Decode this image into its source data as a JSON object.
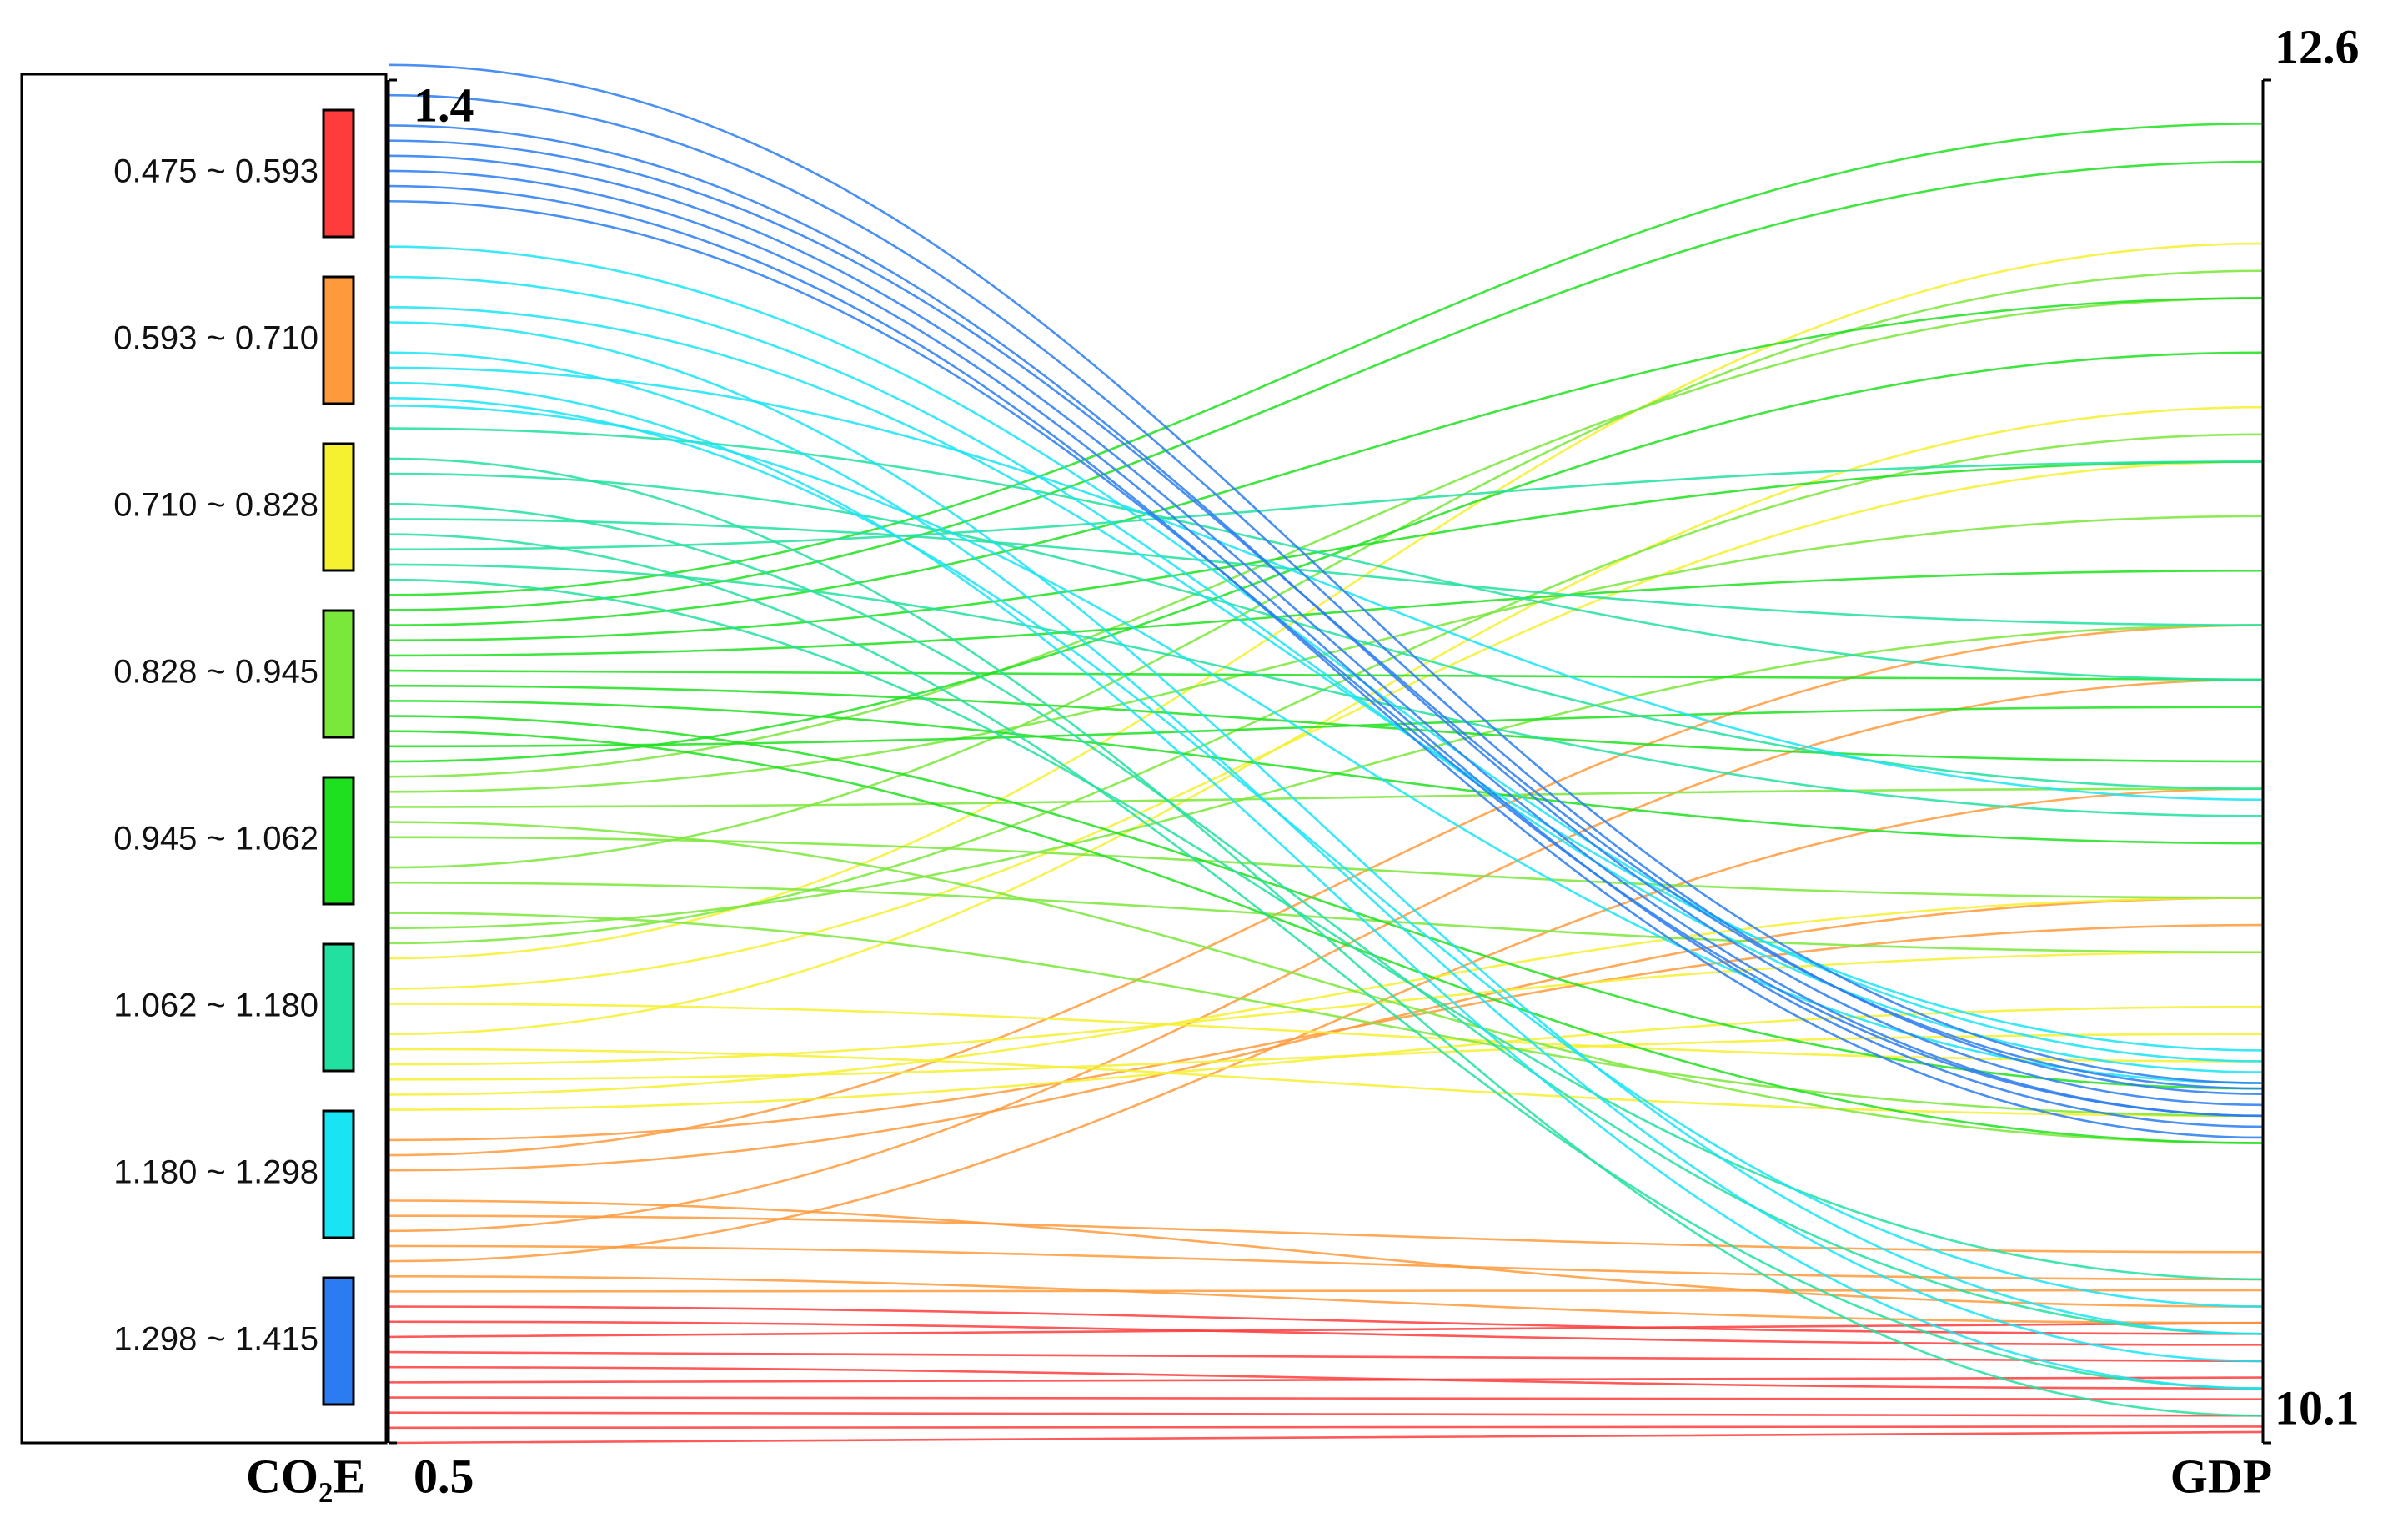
{
  "chart_data": {
    "type": "parallel",
    "axes": [
      {
        "label": "CO₂E",
        "lim": [
          0.5,
          1.4
        ],
        "ticks": [
          0.5,
          1.4
        ]
      },
      {
        "label": "GDP",
        "lim": [
          10.1,
          12.6
        ],
        "ticks": [
          10.1,
          12.6
        ]
      }
    ],
    "series": [
      {
        "name": "0.475 ~ 0.593",
        "color": "#ff3c3c",
        "co2e": [
          0.59,
          0.58,
          0.57,
          0.56,
          0.55,
          0.54,
          0.53,
          0.52,
          0.51,
          0.5
        ],
        "gdp": [
          10.3,
          10.28,
          10.32,
          10.25,
          10.2,
          10.22,
          10.18,
          10.15,
          10.13,
          10.12
        ]
      },
      {
        "name": "0.593 ~ 0.710",
        "color": "#ff9a3c",
        "co2e": [
          0.7,
          0.69,
          0.68,
          0.66,
          0.65,
          0.64,
          0.63,
          0.62,
          0.61,
          0.6
        ],
        "gdp": [
          11.05,
          11.6,
          11.1,
          10.35,
          10.45,
          11.5,
          10.4,
          11.3,
          10.32,
          10.38
        ]
      },
      {
        "name": "0.710 ~ 0.828",
        "color": "#f5f030",
        "co2e": [
          0.82,
          0.8,
          0.79,
          0.77,
          0.76,
          0.75,
          0.74,
          0.73,
          0.72
        ],
        "gdp": [
          12.3,
          11.9,
          10.8,
          12.0,
          10.7,
          11.0,
          10.85,
          11.1,
          10.9
        ]
      },
      {
        "name": "0.828 ~ 0.945",
        "color": "#7ae83a",
        "co2e": [
          0.94,
          0.93,
          0.92,
          0.91,
          0.9,
          0.88,
          0.87,
          0.85,
          0.84,
          0.83
        ],
        "gdp": [
          12.2,
          11.8,
          11.3,
          10.65,
          11.1,
          12.25,
          11.0,
          10.7,
          11.6,
          11.95
        ]
      },
      {
        "name": "0.945 ~ 1.062",
        "color": "#1ee01e",
        "co2e": [
          1.06,
          1.05,
          1.04,
          1.03,
          1.02,
          1.01,
          1.0,
          0.99,
          0.98,
          0.97,
          0.96,
          0.95
        ],
        "gdp": [
          12.52,
          12.45,
          12.2,
          11.9,
          11.7,
          11.5,
          11.35,
          11.2,
          10.75,
          10.65,
          11.45,
          12.1
        ]
      },
      {
        "name": "1.062 ~ 1.180",
        "color": "#22e0a0",
        "co2e": [
          1.17,
          1.15,
          1.14,
          1.12,
          1.11,
          1.1,
          1.09,
          1.08,
          1.07
        ],
        "gdp": [
          11.5,
          10.15,
          11.3,
          10.3,
          11.6,
          10.2,
          11.9,
          11.25,
          10.4
        ]
      },
      {
        "name": "1.180 ~ 1.298",
        "color": "#18e4f4",
        "co2e": [
          1.29,
          1.27,
          1.25,
          1.24,
          1.22,
          1.21,
          1.2,
          1.19,
          1.185
        ],
        "gdp": [
          10.8,
          10.78,
          10.82,
          10.3,
          10.25,
          11.28,
          10.2,
          10.35,
          10.76
        ]
      },
      {
        "name": "1.298 ~ 1.415",
        "color": "#2a7cf0",
        "co2e": [
          1.41,
          1.39,
          1.37,
          1.36,
          1.35,
          1.34,
          1.33,
          1.32
        ],
        "gdp": [
          10.76,
          10.74,
          10.72,
          10.75,
          10.7,
          10.68,
          10.66,
          10.7
        ]
      }
    ]
  }
}
